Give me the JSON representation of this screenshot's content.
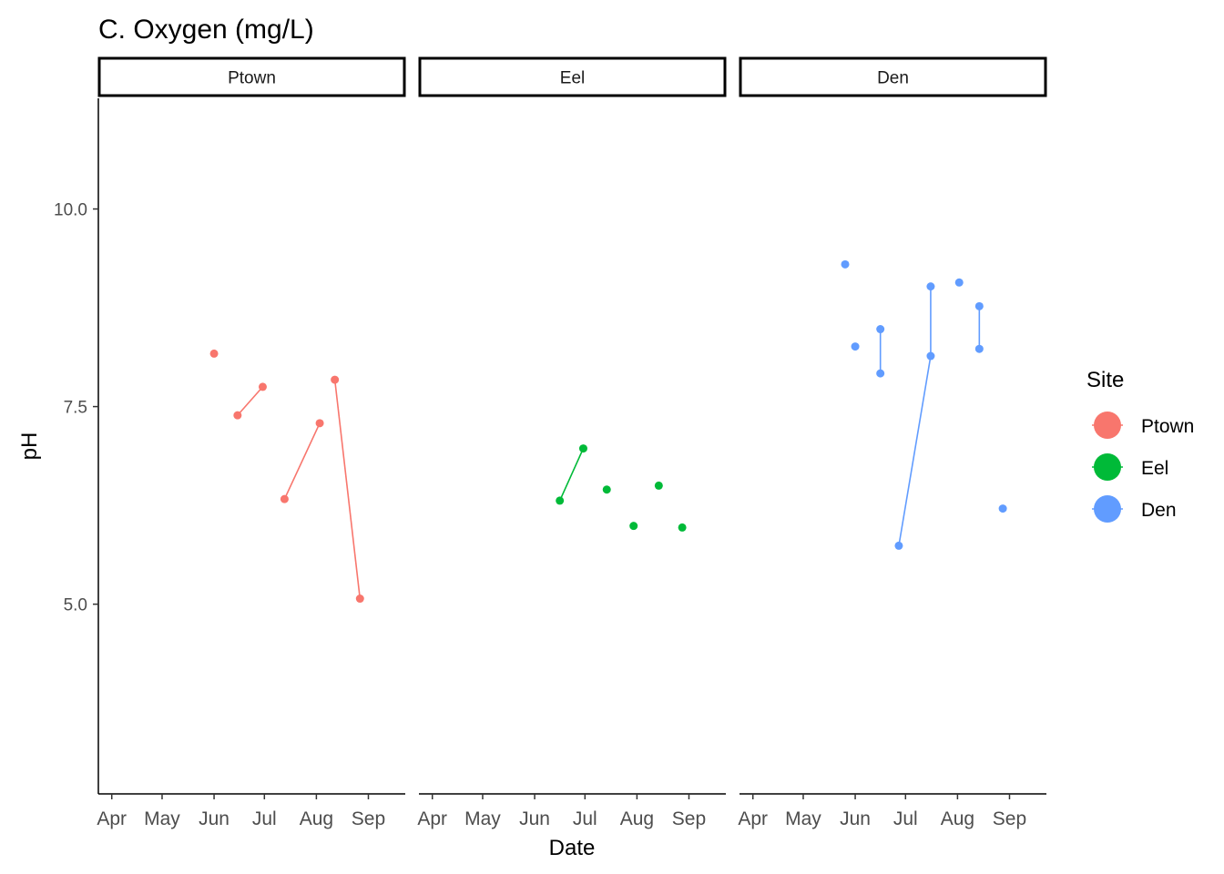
{
  "chart_data": {
    "type": "line",
    "title": "C. Oxygen (mg/L)",
    "xlabel": "Date",
    "ylabel": "pH",
    "x_ticks": [
      "Apr",
      "May",
      "Jun",
      "Jul",
      "Aug",
      "Sep"
    ],
    "x_tick_dates": [
      "2021-04-01",
      "2021-05-01",
      "2021-06-01",
      "2021-07-01",
      "2021-08-01",
      "2021-09-01"
    ],
    "xlim": [
      "2021-03-24",
      "2021-09-23"
    ],
    "y_ticks": [
      5.0,
      7.5,
      10.0
    ],
    "y_tick_labels": [
      "5.0",
      "7.5",
      "10.0"
    ],
    "ylim": [
      2.6,
      11.4
    ],
    "grid": false,
    "legend": {
      "title": "Site",
      "placement": "right",
      "entries": [
        "Ptown",
        "Eel",
        "Den"
      ]
    },
    "facets": [
      "Ptown",
      "Eel",
      "Den"
    ],
    "series": [
      {
        "name": "Ptown",
        "color": "#F8766D",
        "points": [
          {
            "x": "2021-06-01",
            "y": 8.17
          },
          {
            "x": "2021-06-15",
            "y": 7.39
          },
          {
            "x": "2021-06-30",
            "y": 7.75
          },
          {
            "x": "2021-07-13",
            "y": 6.33
          },
          {
            "x": "2021-08-03",
            "y": 7.29
          },
          {
            "x": "2021-08-12",
            "y": 7.84
          },
          {
            "x": "2021-08-27",
            "y": 5.07
          }
        ],
        "segments": [
          [
            1,
            2
          ],
          [
            3,
            4
          ],
          [
            5,
            6
          ]
        ]
      },
      {
        "name": "Eel",
        "color": "#00BA38",
        "points": [
          {
            "x": "2021-06-16",
            "y": 6.31
          },
          {
            "x": "2021-06-30",
            "y": 6.97
          },
          {
            "x": "2021-07-14",
            "y": 6.45
          },
          {
            "x": "2021-07-30",
            "y": 5.99
          },
          {
            "x": "2021-08-14",
            "y": 6.5
          },
          {
            "x": "2021-08-28",
            "y": 5.97
          }
        ],
        "segments": [
          [
            0,
            1
          ]
        ]
      },
      {
        "name": "Den",
        "color": "#619CFF",
        "points": [
          {
            "x": "2021-05-26",
            "y": 9.3
          },
          {
            "x": "2021-06-01",
            "y": 8.26
          },
          {
            "x": "2021-06-16",
            "y": 8.48
          },
          {
            "x": "2021-06-16",
            "y": 7.92
          },
          {
            "x": "2021-06-27",
            "y": 5.74
          },
          {
            "x": "2021-07-16",
            "y": 8.14
          },
          {
            "x": "2021-07-16",
            "y": 9.02
          },
          {
            "x": "2021-08-02",
            "y": 9.07
          },
          {
            "x": "2021-08-14",
            "y": 8.77
          },
          {
            "x": "2021-08-14",
            "y": 8.23
          },
          {
            "x": "2021-08-28",
            "y": 6.21
          }
        ],
        "segments": [
          [
            2,
            3
          ],
          [
            4,
            5
          ],
          [
            5,
            6
          ],
          [
            8,
            9
          ]
        ]
      }
    ]
  }
}
